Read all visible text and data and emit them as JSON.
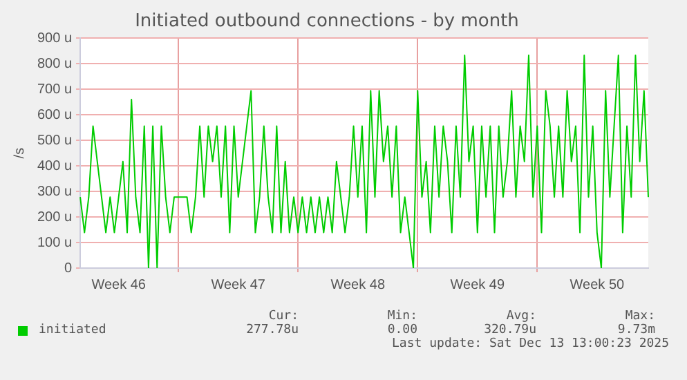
{
  "chart_data": {
    "type": "line",
    "title": "Initiated outbound connections - by month",
    "ylabel": "/s",
    "categories": [
      null,
      null,
      null,
      null,
      null,
      null,
      null,
      null,
      null,
      "Week 46",
      null,
      null,
      null,
      null,
      null,
      null,
      null,
      null,
      null,
      null,
      null,
      null,
      null,
      null,
      null,
      null,
      null,
      null,
      null,
      null,
      null,
      null,
      null,
      null,
      null,
      null,
      null,
      "Week 47",
      null,
      null,
      null,
      null,
      null,
      null,
      null,
      null,
      null,
      null,
      null,
      null,
      null,
      null,
      null,
      null,
      null,
      null,
      null,
      null,
      null,
      null,
      null,
      null,
      null,
      null,
      null,
      "Week 48",
      null,
      null,
      null,
      null,
      null,
      null,
      null,
      null,
      null,
      null,
      null,
      null,
      null,
      null,
      null,
      null,
      null,
      null,
      null,
      null,
      null,
      null,
      null,
      null,
      null,
      null,
      null,
      "Week 49",
      null,
      null,
      null,
      null,
      null,
      null,
      null,
      null,
      null,
      null,
      null,
      null,
      null,
      null,
      null,
      null,
      null,
      null,
      null,
      null,
      null,
      null,
      null,
      null,
      null,
      null,
      null,
      "Week 50",
      null,
      null,
      null,
      null,
      null,
      null,
      null,
      null,
      null,
      null,
      null,
      null
    ],
    "series": [
      {
        "name": "initiated",
        "color": "#00cc00",
        "values": [
          278,
          139,
          278,
          556,
          417,
          278,
          139,
          278,
          139,
          278,
          417,
          139,
          660,
          278,
          139,
          556,
          0,
          556,
          0,
          556,
          278,
          139,
          278,
          278,
          278,
          278,
          139,
          278,
          556,
          278,
          556,
          417,
          556,
          278,
          556,
          139,
          556,
          278,
          417,
          556,
          694,
          139,
          278,
          556,
          278,
          139,
          556,
          139,
          417,
          139,
          278,
          139,
          278,
          139,
          278,
          139,
          278,
          139,
          278,
          139,
          417,
          278,
          139,
          278,
          556,
          278,
          556,
          139,
          694,
          278,
          694,
          417,
          556,
          278,
          556,
          139,
          278,
          139,
          0,
          694,
          278,
          417,
          139,
          556,
          278,
          556,
          417,
          139,
          556,
          278,
          833,
          417,
          556,
          139,
          556,
          278,
          556,
          139,
          556,
          278,
          417,
          694,
          278,
          556,
          417,
          833,
          278,
          556,
          139,
          694,
          556,
          278,
          556,
          278,
          694,
          417,
          556,
          139,
          833,
          278,
          556,
          139,
          0,
          694,
          278,
          556,
          833,
          139,
          556,
          278,
          833,
          417,
          694,
          278
        ]
      }
    ],
    "ylim": [
      0,
      900
    ],
    "yticks": [
      {
        "value": 0,
        "label": "0"
      },
      {
        "value": 100,
        "label": "100 u"
      },
      {
        "value": 200,
        "label": "200 u"
      },
      {
        "value": 300,
        "label": "300 u"
      },
      {
        "value": 400,
        "label": "400 u"
      },
      {
        "value": 500,
        "label": "500 u"
      },
      {
        "value": 600,
        "label": "600 u"
      },
      {
        "value": 700,
        "label": "700 u"
      },
      {
        "value": 800,
        "label": "800 u"
      },
      {
        "value": 900,
        "label": "900 u"
      }
    ],
    "grid": true,
    "legend": "bottom",
    "marker": "none",
    "line_style": "solid",
    "annotations": [
      "Cur:",
      "277.78u",
      "Min:",
      "0.00",
      "Avg:",
      "320.79u",
      "Max:",
      "9.73m",
      "Last update: Sat Dec 13 13:00:23 2025"
    ]
  }
}
